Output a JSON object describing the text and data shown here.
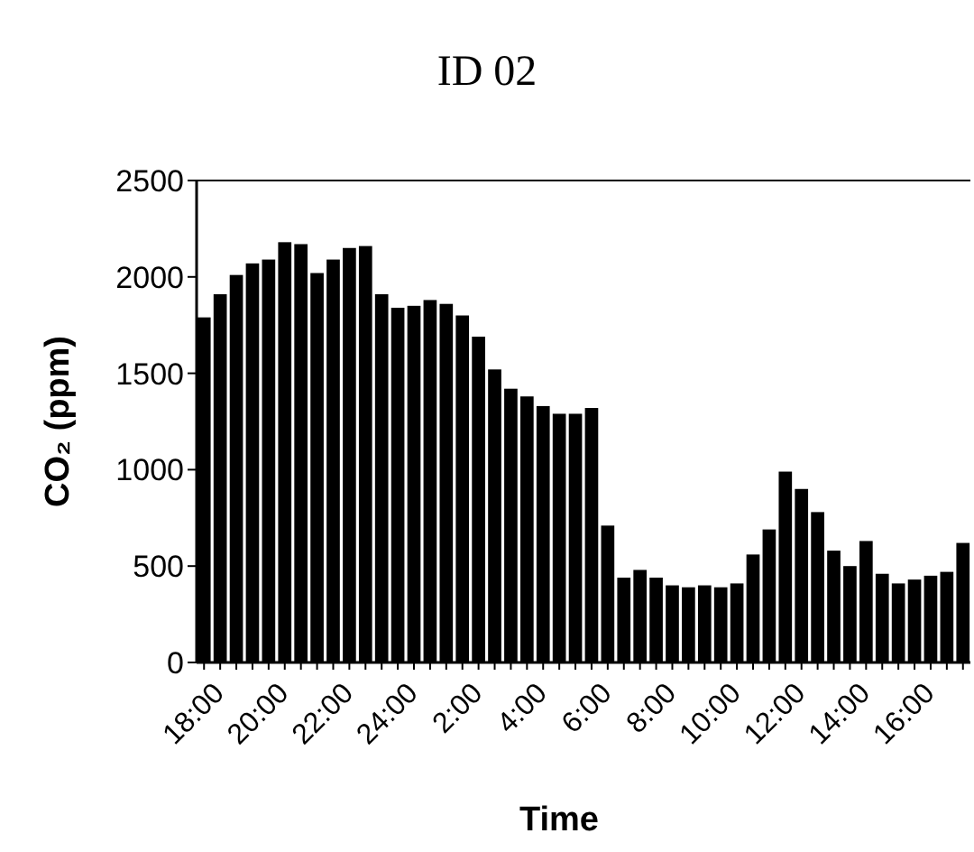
{
  "chart_data": {
    "type": "bar",
    "title": "ID 02",
    "xlabel": "Time",
    "ylabel": "CO₂ (ppm)",
    "categories": [
      "18:00",
      null,
      null,
      null,
      "20:00",
      null,
      null,
      null,
      "22:00",
      null,
      null,
      null,
      "24:00",
      null,
      null,
      null,
      "2:00",
      null,
      null,
      null,
      "4:00",
      null,
      null,
      null,
      "6:00",
      null,
      null,
      null,
      "8:00",
      null,
      null,
      null,
      "10:00",
      null,
      null,
      null,
      "12:00",
      null,
      null,
      null,
      "14:00",
      null,
      null,
      null,
      "16:00",
      null,
      null,
      null
    ],
    "values": [
      1790,
      1910,
      2010,
      2070,
      2090,
      2180,
      2170,
      2020,
      2090,
      2150,
      2160,
      1910,
      1840,
      1850,
      1880,
      1860,
      1800,
      1690,
      1520,
      1420,
      1380,
      1330,
      1290,
      1290,
      1320,
      710,
      440,
      480,
      440,
      400,
      390,
      400,
      390,
      410,
      560,
      690,
      990,
      900,
      780,
      580,
      500,
      630,
      460,
      410,
      430,
      450,
      470,
      620
    ],
    "color": "#000000",
    "ylim": [
      0,
      2500
    ],
    "yticks": [
      0,
      500,
      1000,
      1500,
      2000,
      2500
    ],
    "grid": false
  }
}
